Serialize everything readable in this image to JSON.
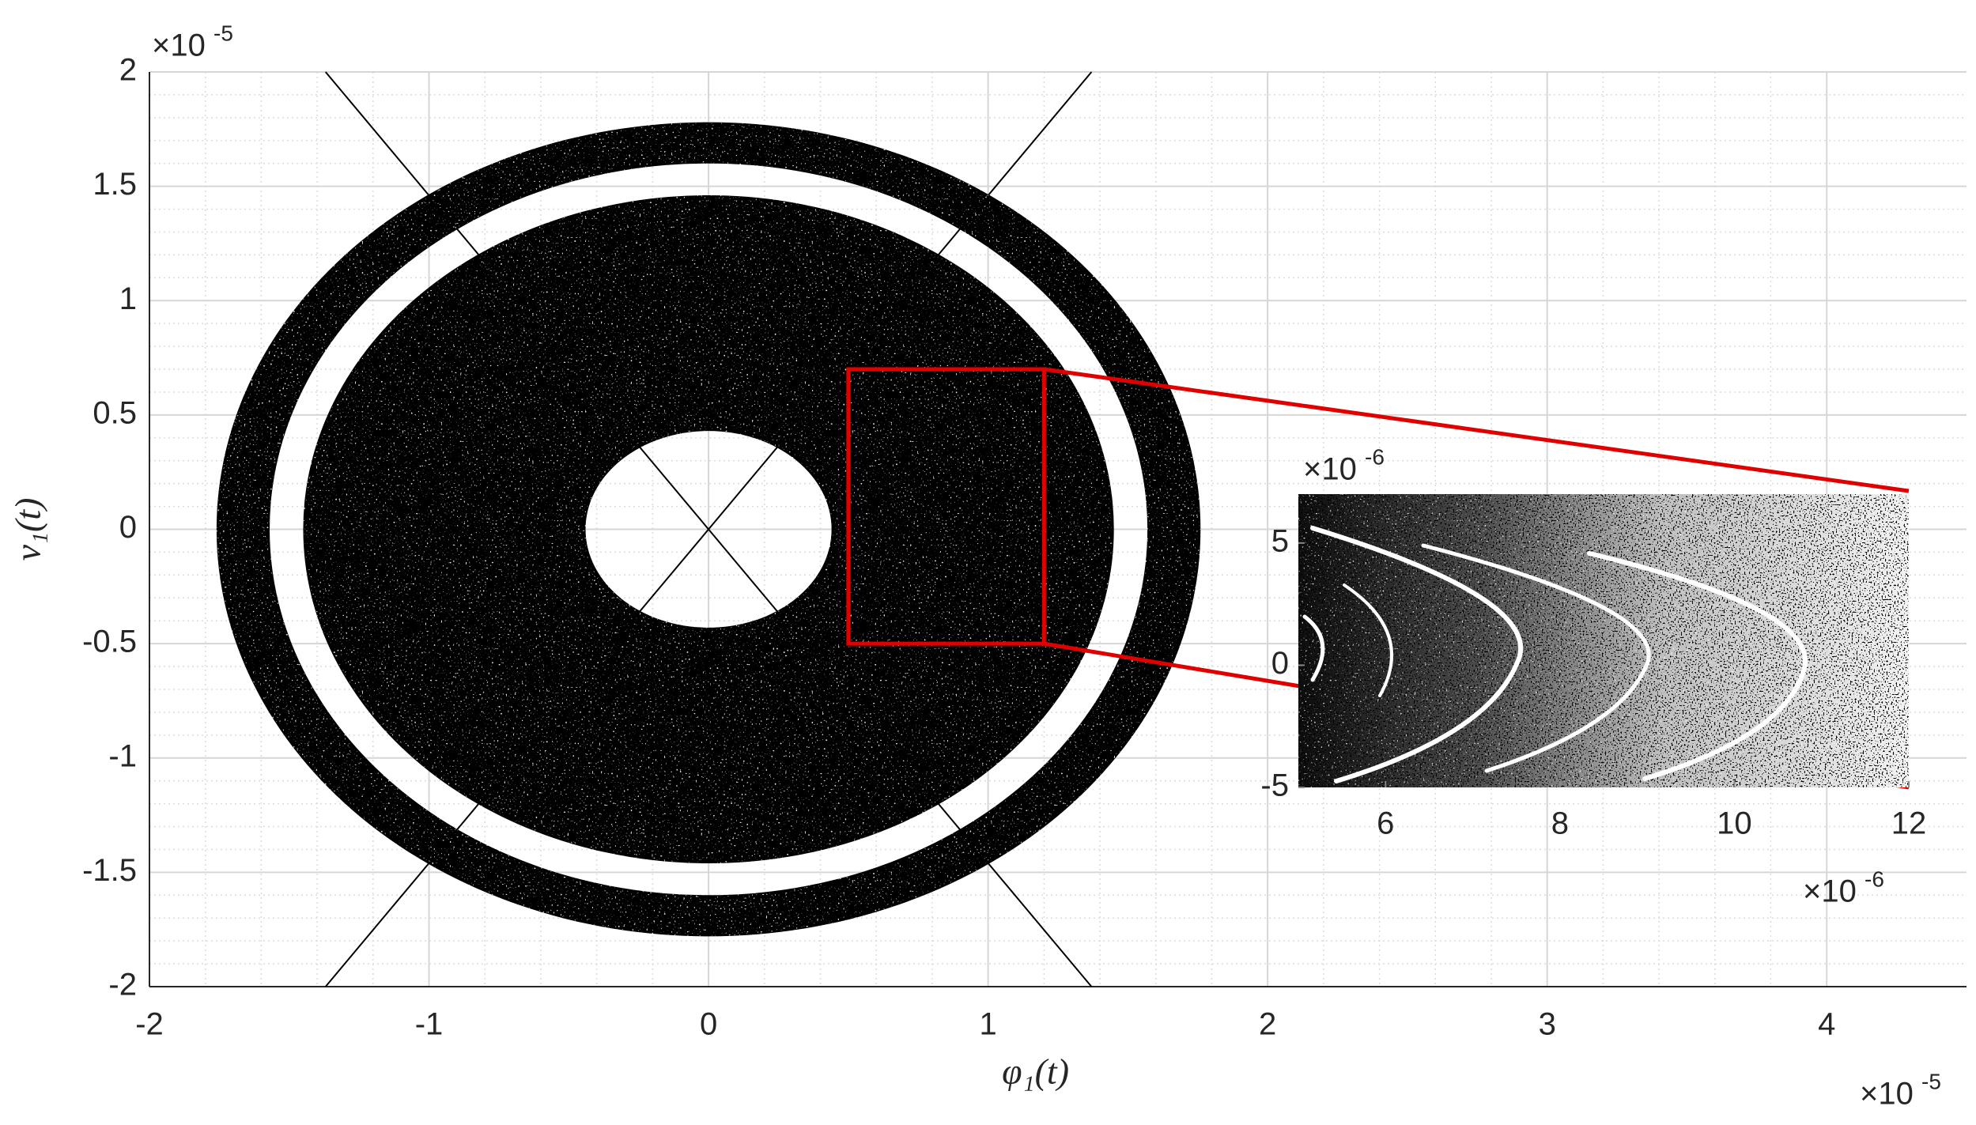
{
  "chart_data": {
    "type": "scatter",
    "xlabel": "φ₁(t)",
    "ylabel": "v₁(t)",
    "x_exponent": {
      "base": "×10",
      "power": "-5"
    },
    "y_exponent": {
      "base": "×10",
      "power": "-5"
    },
    "xlim": [
      -2,
      4.5
    ],
    "ylim": [
      -2,
      2
    ],
    "xticks": [
      -2,
      -1,
      0,
      1,
      2,
      3,
      4
    ],
    "yticks": [
      -2,
      -1.5,
      -1,
      -0.5,
      0,
      0.5,
      1,
      1.5,
      2
    ],
    "grid": true,
    "minor_grid": true,
    "color": "#000000",
    "regions": [
      {
        "rx_outer": 1.76,
        "ry_outer": 1.78,
        "rx_inner": 1.57,
        "ry_inner": 1.6
      },
      {
        "rx_outer": 1.45,
        "ry_outer": 1.46,
        "rx_inner": 0.44,
        "ry_inner": 0.43
      }
    ],
    "lines": [
      {
        "x": [
          -1.37,
          1.37
        ],
        "y": [
          2,
          -2
        ]
      },
      {
        "x": [
          -1.37,
          1.37
        ],
        "y": [
          -2,
          2
        ]
      }
    ],
    "zoom_box": {
      "xlim": [
        0.5,
        1.2
      ],
      "ylim": [
        -0.5,
        0.7
      ],
      "color": "#e00000"
    },
    "inset": {
      "xlim": [
        5,
        12
      ],
      "ylim": [
        -5,
        7
      ],
      "xticks": [
        6,
        8,
        10,
        12
      ],
      "yticks": [
        -5,
        0,
        5
      ],
      "x_exponent": {
        "base": "×10",
        "power": "-6"
      },
      "y_exponent": {
        "base": "×10",
        "power": "-6"
      }
    }
  }
}
